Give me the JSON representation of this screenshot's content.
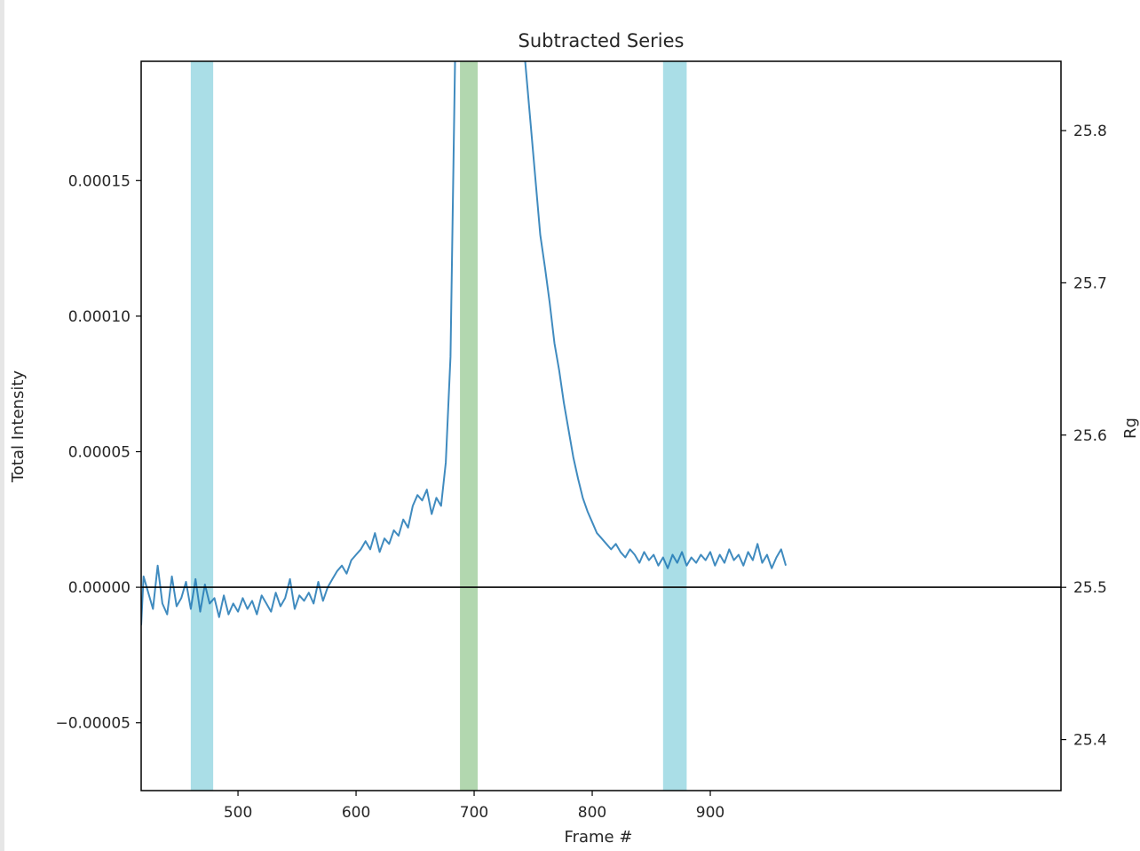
{
  "chart_data": {
    "type": "line",
    "title": "Subtracted Series",
    "xlabel": "Frame #",
    "ylabel": "Total Intensity",
    "y2label": "Rg",
    "xlim": [
      418,
      1197
    ],
    "ylim": [
      -7.5e-05,
      0.000194
    ],
    "y2lim": [
      25.3665,
      25.8455
    ],
    "x_ticks": [
      500,
      600,
      700,
      800,
      900
    ],
    "x_tick_labels": [
      "500",
      "600",
      "700",
      "800",
      "900"
    ],
    "y_ticks": [
      -5e-05,
      0,
      5e-05,
      0.0001,
      0.00015
    ],
    "y_tick_labels": [
      "−0.00005",
      "0.00000",
      "0.00005",
      "0.00010",
      "0.00015"
    ],
    "y2_ticks": [
      25.4,
      25.5,
      25.6,
      25.7,
      25.8
    ],
    "y2_tick_labels": [
      "25.4",
      "25.5",
      "25.6",
      "25.7",
      "25.8"
    ],
    "grid": false,
    "zero_line": 0,
    "line_color": "#1f77b4",
    "shaded_regions": [
      {
        "x0": 460,
        "x1": 479,
        "color": "#8dd3df"
      },
      {
        "x0": 688,
        "x1": 703,
        "color": "#98c994"
      },
      {
        "x0": 860,
        "x1": 880,
        "color": "#8dd3df"
      }
    ],
    "series": [
      {
        "values": [
          [
            418,
            -1.4e-05
          ],
          [
            420,
            4e-06
          ],
          [
            424,
            -2e-06
          ],
          [
            428,
            -8e-06
          ],
          [
            432,
            8e-06
          ],
          [
            436,
            -6e-06
          ],
          [
            440,
            -1e-05
          ],
          [
            444,
            4e-06
          ],
          [
            448,
            -7e-06
          ],
          [
            452,
            -4e-06
          ],
          [
            456,
            2e-06
          ],
          [
            460,
            -8e-06
          ],
          [
            464,
            3e-06
          ],
          [
            468,
            -9e-06
          ],
          [
            472,
            1e-06
          ],
          [
            476,
            -6e-06
          ],
          [
            480,
            -4e-06
          ],
          [
            484,
            -1.1e-05
          ],
          [
            488,
            -3e-06
          ],
          [
            492,
            -1e-05
          ],
          [
            496,
            -6e-06
          ],
          [
            500,
            -9e-06
          ],
          [
            504,
            -4e-06
          ],
          [
            508,
            -8e-06
          ],
          [
            512,
            -5e-06
          ],
          [
            516,
            -1e-05
          ],
          [
            520,
            -3e-06
          ],
          [
            524,
            -6e-06
          ],
          [
            528,
            -9e-06
          ],
          [
            532,
            -2e-06
          ],
          [
            536,
            -7e-06
          ],
          [
            540,
            -4e-06
          ],
          [
            544,
            3e-06
          ],
          [
            548,
            -8e-06
          ],
          [
            552,
            -3e-06
          ],
          [
            556,
            -5e-06
          ],
          [
            560,
            -2e-06
          ],
          [
            564,
            -6e-06
          ],
          [
            568,
            2e-06
          ],
          [
            572,
            -5e-06
          ],
          [
            576,
            0.0
          ],
          [
            580,
            3e-06
          ],
          [
            584,
            6e-06
          ],
          [
            588,
            8e-06
          ],
          [
            592,
            5e-06
          ],
          [
            596,
            1e-05
          ],
          [
            600,
            1.2e-05
          ],
          [
            604,
            1.4e-05
          ],
          [
            608,
            1.7e-05
          ],
          [
            612,
            1.4e-05
          ],
          [
            616,
            2e-05
          ],
          [
            620,
            1.3e-05
          ],
          [
            624,
            1.8e-05
          ],
          [
            628,
            1.6e-05
          ],
          [
            632,
            2.1e-05
          ],
          [
            636,
            1.9e-05
          ],
          [
            640,
            2.5e-05
          ],
          [
            644,
            2.2e-05
          ],
          [
            648,
            3e-05
          ],
          [
            652,
            3.4e-05
          ],
          [
            656,
            3.2e-05
          ],
          [
            660,
            3.6e-05
          ],
          [
            664,
            2.7e-05
          ],
          [
            668,
            3.3e-05
          ],
          [
            672,
            3e-05
          ],
          [
            676,
            4.6e-05
          ],
          [
            680,
            8.5e-05
          ],
          [
            684,
            0.0002
          ],
          [
            742,
            0.0002
          ],
          [
            745,
            0.000185
          ],
          [
            748,
            0.00017
          ],
          [
            752,
            0.00015
          ],
          [
            756,
            0.00013
          ],
          [
            760,
            0.000118
          ],
          [
            764,
            0.000105
          ],
          [
            768,
            9e-05
          ],
          [
            772,
            8e-05
          ],
          [
            776,
            6.8e-05
          ],
          [
            780,
            5.8e-05
          ],
          [
            784,
            4.8e-05
          ],
          [
            788,
            4e-05
          ],
          [
            792,
            3.3e-05
          ],
          [
            796,
            2.8e-05
          ],
          [
            800,
            2.4e-05
          ],
          [
            804,
            2e-05
          ],
          [
            808,
            1.8e-05
          ],
          [
            812,
            1.6e-05
          ],
          [
            816,
            1.4e-05
          ],
          [
            820,
            1.6e-05
          ],
          [
            824,
            1.3e-05
          ],
          [
            828,
            1.1e-05
          ],
          [
            832,
            1.4e-05
          ],
          [
            836,
            1.2e-05
          ],
          [
            840,
            9e-06
          ],
          [
            844,
            1.3e-05
          ],
          [
            848,
            1e-05
          ],
          [
            852,
            1.2e-05
          ],
          [
            856,
            8e-06
          ],
          [
            860,
            1.1e-05
          ],
          [
            864,
            7e-06
          ],
          [
            868,
            1.2e-05
          ],
          [
            872,
            9e-06
          ],
          [
            876,
            1.3e-05
          ],
          [
            880,
            8e-06
          ],
          [
            884,
            1.1e-05
          ],
          [
            888,
            9e-06
          ],
          [
            892,
            1.2e-05
          ],
          [
            896,
            1e-05
          ],
          [
            900,
            1.3e-05
          ],
          [
            904,
            8e-06
          ],
          [
            908,
            1.2e-05
          ],
          [
            912,
            9e-06
          ],
          [
            916,
            1.4e-05
          ],
          [
            920,
            1e-05
          ],
          [
            924,
            1.2e-05
          ],
          [
            928,
            8e-06
          ],
          [
            932,
            1.3e-05
          ],
          [
            936,
            1e-05
          ],
          [
            940,
            1.6e-05
          ],
          [
            944,
            9e-06
          ],
          [
            948,
            1.2e-05
          ],
          [
            952,
            7e-06
          ],
          [
            956,
            1.1e-05
          ],
          [
            960,
            1.4e-05
          ],
          [
            964,
            8e-06
          ]
        ]
      }
    ]
  }
}
